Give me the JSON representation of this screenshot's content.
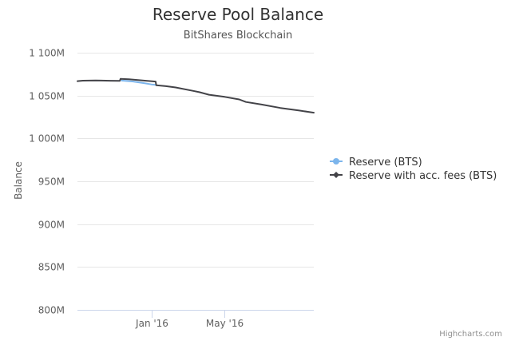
{
  "chart_data": {
    "type": "line",
    "title": "Reserve Pool Balance",
    "subtitle": "BitShares Blockchain",
    "ylabel": "Balance",
    "xlabel": "",
    "ylim": [
      800,
      1100
    ],
    "y_unit": "M",
    "y_ticks": [
      {
        "value": 800,
        "label": "800M"
      },
      {
        "value": 850,
        "label": "850M"
      },
      {
        "value": 900,
        "label": "900M"
      },
      {
        "value": 950,
        "label": "950M"
      },
      {
        "value": 1000,
        "label": "1 000M"
      },
      {
        "value": 1050,
        "label": "1 050M"
      },
      {
        "value": 1100,
        "label": "1 100M"
      }
    ],
    "xlim": [
      "2015-09-01",
      "2016-09-25"
    ],
    "x_ticks": [
      {
        "date": "2016-01-01",
        "label": "Jan '16"
      },
      {
        "date": "2016-05-01",
        "label": "May '16"
      }
    ],
    "grid": "horizontal",
    "legend_position": "right",
    "series": [
      {
        "name": "Reserve (BTS)",
        "color": "#7cb5ec",
        "points": [
          [
            "2015-11-13",
            1067.5
          ],
          [
            "2015-12-01",
            1066.5
          ],
          [
            "2015-12-20",
            1064.5
          ],
          [
            "2016-01-01",
            1063.0
          ],
          [
            "2016-01-08",
            1062.5
          ]
        ]
      },
      {
        "name": "Reserve with acc. fees (BTS)",
        "color": "#434348",
        "points": [
          [
            "2015-09-01",
            1066.8
          ],
          [
            "2015-09-10",
            1067.4
          ],
          [
            "2015-10-01",
            1067.6
          ],
          [
            "2015-10-25",
            1067.3
          ],
          [
            "2015-11-10",
            1067.2
          ],
          [
            "2015-11-11",
            1069.4
          ],
          [
            "2015-11-25",
            1069.0
          ],
          [
            "2015-12-10",
            1068.0
          ],
          [
            "2015-12-25",
            1067.2
          ],
          [
            "2016-01-08",
            1066.4
          ],
          [
            "2016-01-09",
            1062.0
          ],
          [
            "2016-01-25",
            1061.0
          ],
          [
            "2016-02-10",
            1059.5
          ],
          [
            "2016-03-10",
            1055.5
          ],
          [
            "2016-03-20",
            1054.0
          ],
          [
            "2016-04-05",
            1051.0
          ],
          [
            "2016-05-01",
            1048.5
          ],
          [
            "2016-05-25",
            1045.5
          ],
          [
            "2016-06-05",
            1042.5
          ],
          [
            "2016-07-01",
            1039.5
          ],
          [
            "2016-08-01",
            1035.5
          ],
          [
            "2016-09-01",
            1032.5
          ],
          [
            "2016-09-25",
            1030.0
          ]
        ]
      }
    ]
  },
  "credits": "Highcharts.com"
}
